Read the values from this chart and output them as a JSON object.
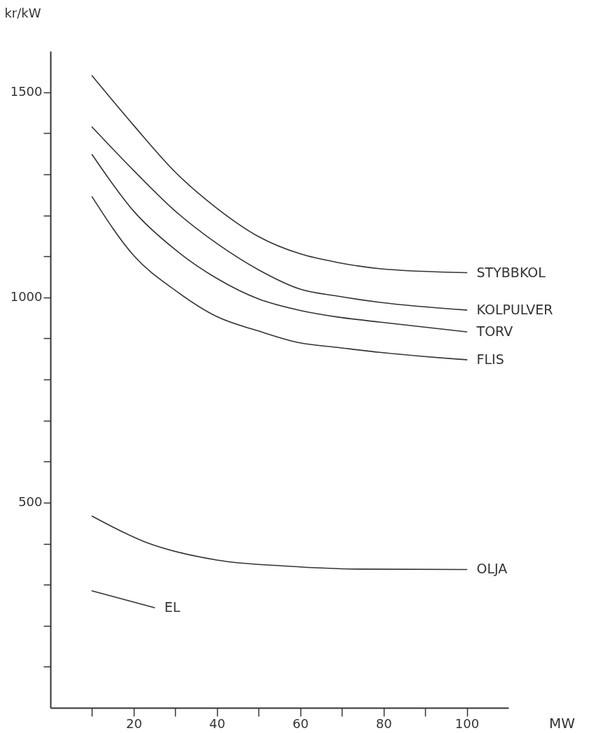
{
  "chart_data": {
    "type": "line",
    "xlabel": "MW",
    "ylabel": "kr/kW",
    "xlim": [
      0,
      110
    ],
    "ylim": [
      0,
      1600
    ],
    "xticks": [
      {
        "value": 10,
        "label": null
      },
      20,
      {
        "value": 30,
        "label": null
      },
      40,
      {
        "value": 50,
        "label": null
      },
      60,
      {
        "value": 70,
        "label": null
      },
      80,
      {
        "value": 90,
        "label": null
      },
      100
    ],
    "yticks": [
      {
        "value": 100,
        "label": null
      },
      {
        "value": 200,
        "label": null
      },
      {
        "value": 300,
        "label": null
      },
      {
        "value": 400,
        "label": null
      },
      500,
      {
        "value": 600,
        "label": null
      },
      {
        "value": 700,
        "label": null
      },
      {
        "value": 800,
        "label": null
      },
      {
        "value": 900,
        "label": null
      },
      1000,
      {
        "value": 1100,
        "label": null
      },
      {
        "value": 1200,
        "label": null
      },
      {
        "value": 1300,
        "label": null
      },
      {
        "value": 1400,
        "label": null
      },
      1500
    ],
    "legend": false,
    "grid": false,
    "marker": "none",
    "line_style": "solid",
    "series": [
      {
        "name": "STYBBKOL",
        "color": "#333333",
        "x": [
          10,
          20,
          30,
          40,
          50,
          60,
          69,
          79,
          100
        ],
        "values": [
          1540,
          1419,
          1305,
          1217,
          1148,
          1106,
          1085,
          1070,
          1060
        ]
      },
      {
        "name": "KOLPULVER",
        "color": "#333333",
        "x": [
          10,
          20,
          30,
          40,
          50,
          60,
          69,
          79,
          100
        ],
        "values": [
          1415,
          1309,
          1210,
          1131,
          1067,
          1020,
          1003,
          988,
          969
        ]
      },
      {
        "name": "TORV",
        "color": "#333333",
        "x": [
          10,
          20,
          30,
          40,
          50,
          60,
          69,
          79,
          100
        ],
        "values": [
          1348,
          1210,
          1116,
          1046,
          996,
          968,
          952,
          940,
          916
        ]
      },
      {
        "name": "FLIS",
        "color": "#333333",
        "x": [
          10,
          20,
          30,
          40,
          50,
          60,
          69,
          79,
          100
        ],
        "values": [
          1245,
          1102,
          1017,
          953,
          918,
          889,
          878,
          866,
          848
        ]
      },
      {
        "name": "OLJA",
        "color": "#333333",
        "x": [
          10,
          23,
          40,
          57,
          74,
          100
        ],
        "values": [
          467,
          403,
          360,
          345,
          338,
          337
        ]
      },
      {
        "name": "EL",
        "color": "#333333",
        "x": [
          10,
          25
        ],
        "values": [
          285,
          244
        ]
      }
    ]
  }
}
